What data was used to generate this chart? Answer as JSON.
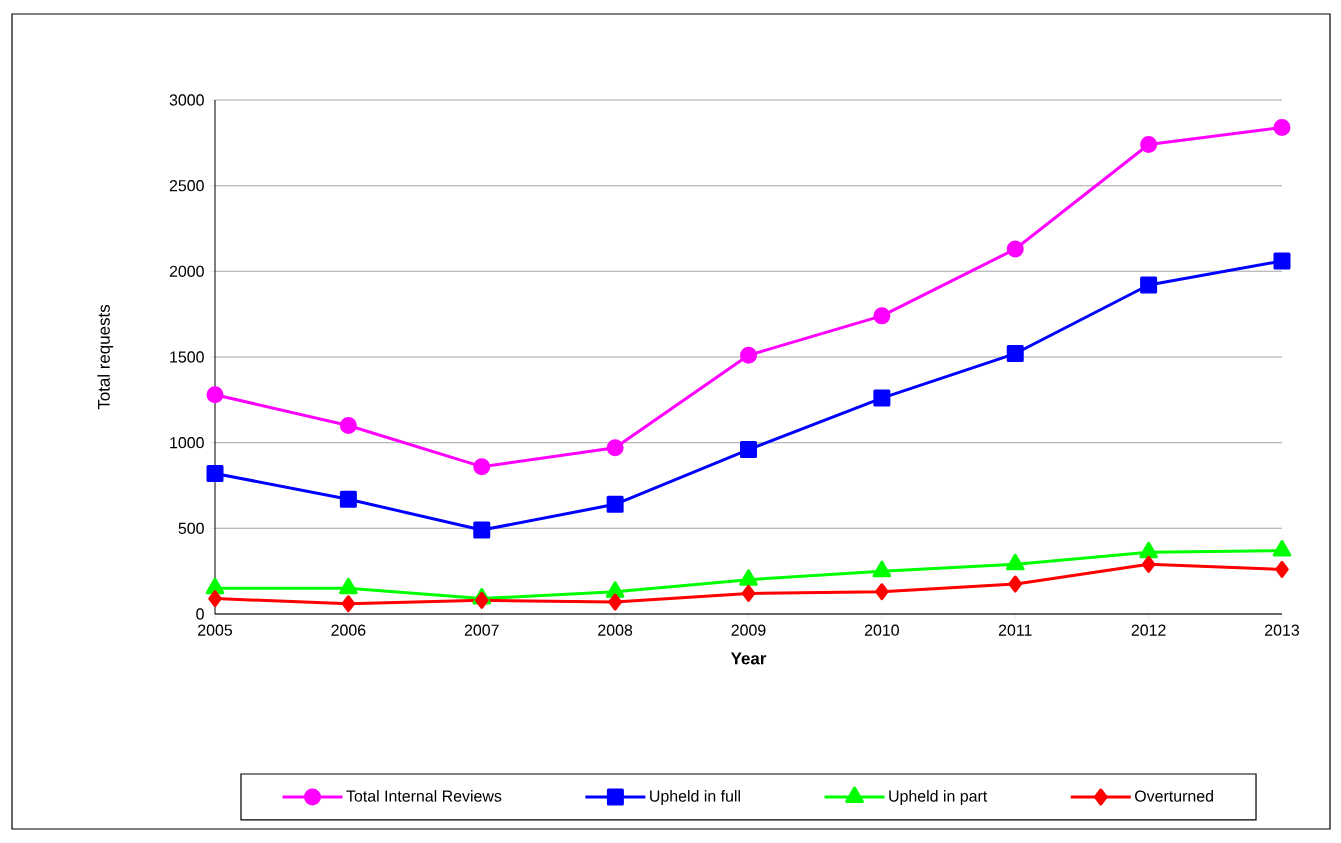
{
  "chart_data": {
    "type": "line",
    "xlabel": "Year",
    "ylabel": "Total requests",
    "x": [
      2005,
      2006,
      2007,
      2008,
      2009,
      2010,
      2011,
      2012,
      2013
    ],
    "xlim": [
      2005,
      2013
    ],
    "xticks": [
      2005,
      2006,
      2007,
      2008,
      2009,
      2010,
      2011,
      2012,
      2013
    ],
    "ylim": [
      0,
      3000
    ],
    "yticks": [
      0,
      500,
      1000,
      1500,
      2000,
      2500,
      3000
    ],
    "grid": "y",
    "legend": "bottom",
    "line_style": "solid",
    "series": [
      {
        "name": "Total Internal Reviews",
        "color": "#ff00ff",
        "marker": "circle",
        "values": [
          1280,
          1100,
          860,
          970,
          1510,
          1740,
          2130,
          2740,
          2840
        ]
      },
      {
        "name": "Upheld in full",
        "color": "#0000ff",
        "marker": "square",
        "values": [
          820,
          670,
          490,
          640,
          960,
          1260,
          1520,
          1920,
          2060
        ]
      },
      {
        "name": "Upheld in part",
        "color": "#00ff00",
        "marker": "triangle",
        "values": [
          150,
          150,
          90,
          130,
          200,
          250,
          290,
          360,
          370
        ]
      },
      {
        "name": "Overturned",
        "color": "#ff0000",
        "marker": "diamond",
        "values": [
          90,
          60,
          80,
          70,
          120,
          130,
          175,
          290,
          260
        ]
      }
    ]
  }
}
